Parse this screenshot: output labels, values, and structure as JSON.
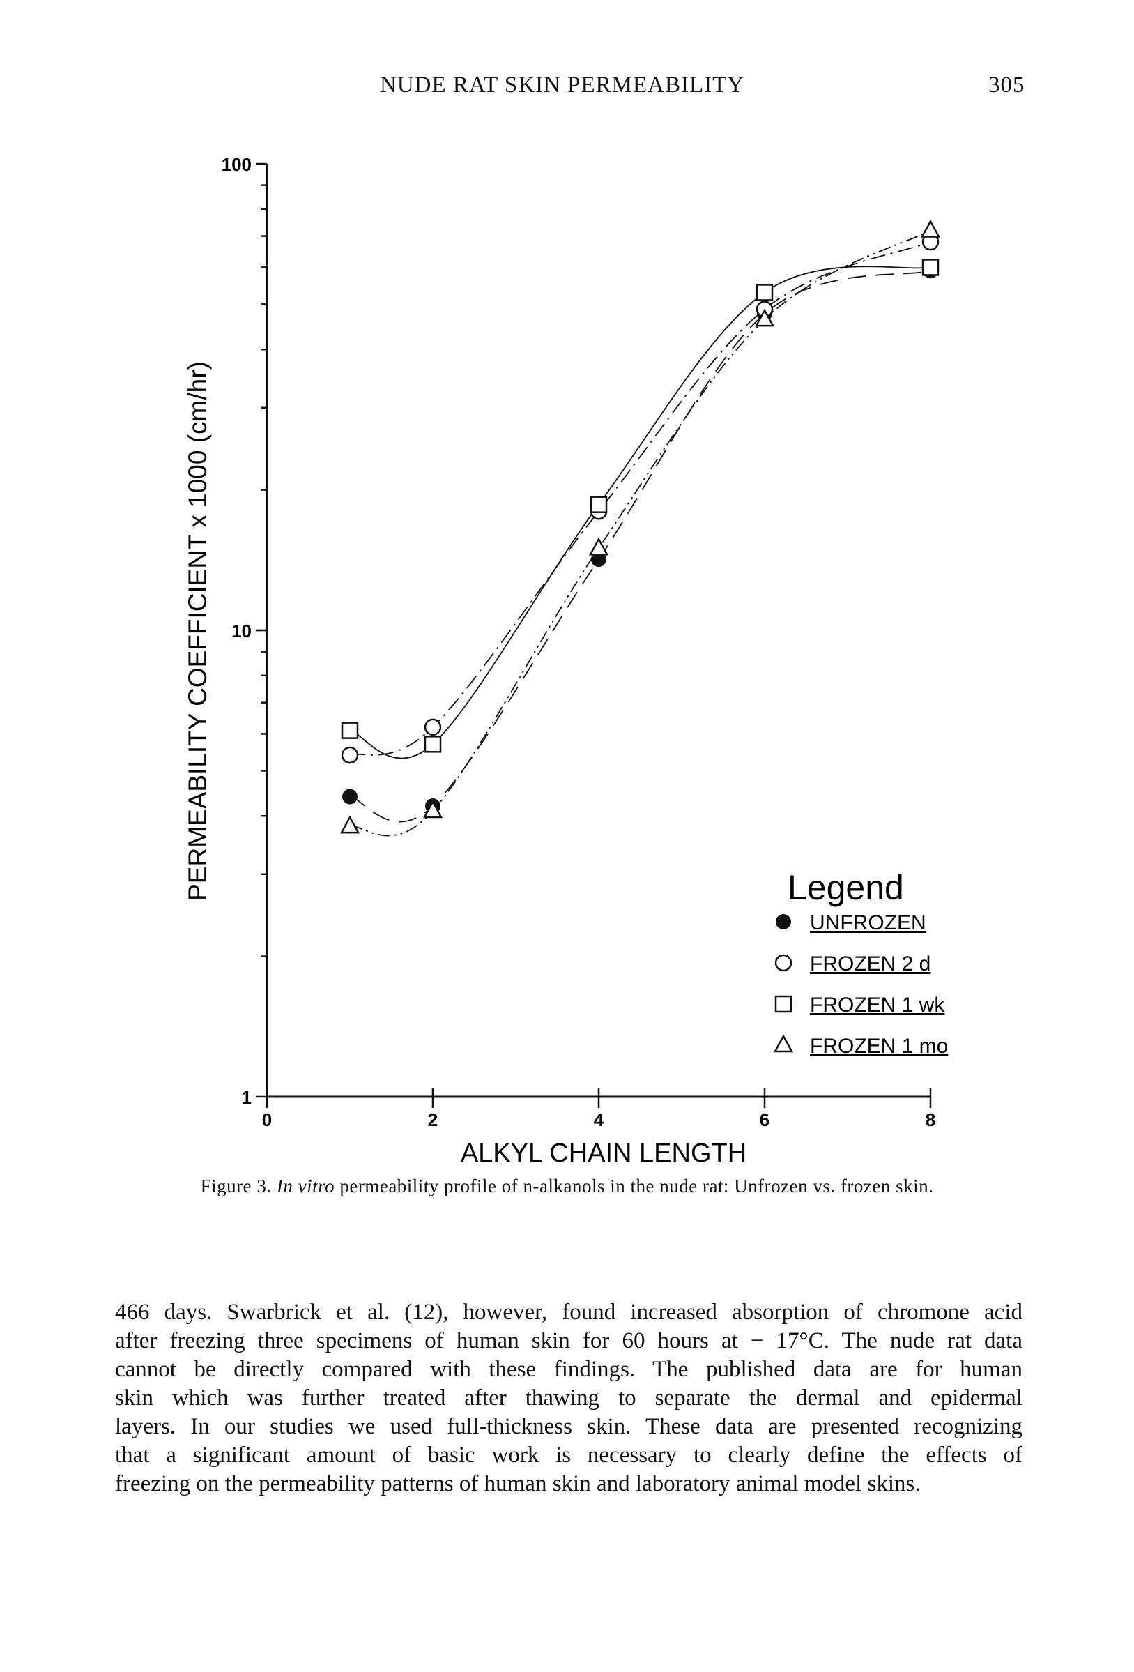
{
  "header": {
    "running_title": "NUDE RAT SKIN PERMEABILITY",
    "page_number": "305"
  },
  "chart_data": {
    "type": "line",
    "title": "",
    "xlabel": "ALKYL CHAIN LENGTH",
    "ylabel": "PERMEABILITY COEFFICIENT x 1000 (cm/hr)",
    "xlim": [
      0,
      8
    ],
    "ylim": [
      1,
      100
    ],
    "yscale": "log",
    "x_ticks": [
      "0",
      "2",
      "4",
      "6",
      "8"
    ],
    "y_ticks": [
      "1",
      "10",
      "100"
    ],
    "grid": false,
    "legend": {
      "title": "Legend",
      "placement": "bottom-right"
    },
    "x": [
      1,
      2,
      4,
      6,
      8
    ],
    "series": [
      {
        "name": "UNFROZEN",
        "marker": "filled-circle",
        "line": "long-dash",
        "values": [
          4.4,
          4.2,
          14.2,
          47.7,
          59
        ]
      },
      {
        "name": "FROZEN 2 d",
        "marker": "open-circle",
        "line": "dash-dot",
        "values": [
          5.4,
          6.2,
          18,
          48.8,
          68
        ]
      },
      {
        "name": "FROZEN 1 wk",
        "marker": "open-square",
        "line": "solid",
        "values": [
          6.1,
          5.7,
          18.6,
          53,
          60
        ]
      },
      {
        "name": "FROZEN 1 mo",
        "marker": "open-triangle",
        "line": "dash-dot-dot",
        "values": [
          3.8,
          4.1,
          15,
          46.4,
          72
        ]
      }
    ]
  },
  "caption": {
    "label": "Figure 3.",
    "italic": "In vitro",
    "text": "permeability profile of n-alkanols in the nude rat: Unfrozen vs. frozen skin."
  },
  "body_text": {
    "lines": [
      "466 days. Swarbrick et al. (12), however, found increased absorption of chromone acid",
      "after freezing three specimens of human skin for 60 hours at − 17°C. The nude rat data",
      "cannot be directly compared with these findings. The published data are for human",
      "skin which was further treated after thawing to separate the dermal and epidermal",
      "layers. In our studies we used full-thickness skin. These data are presented recognizing",
      "that a significant amount of basic work is necessary to clearly define the effects of",
      "freezing on the permeability patterns of human skin and laboratory animal model skins."
    ]
  }
}
